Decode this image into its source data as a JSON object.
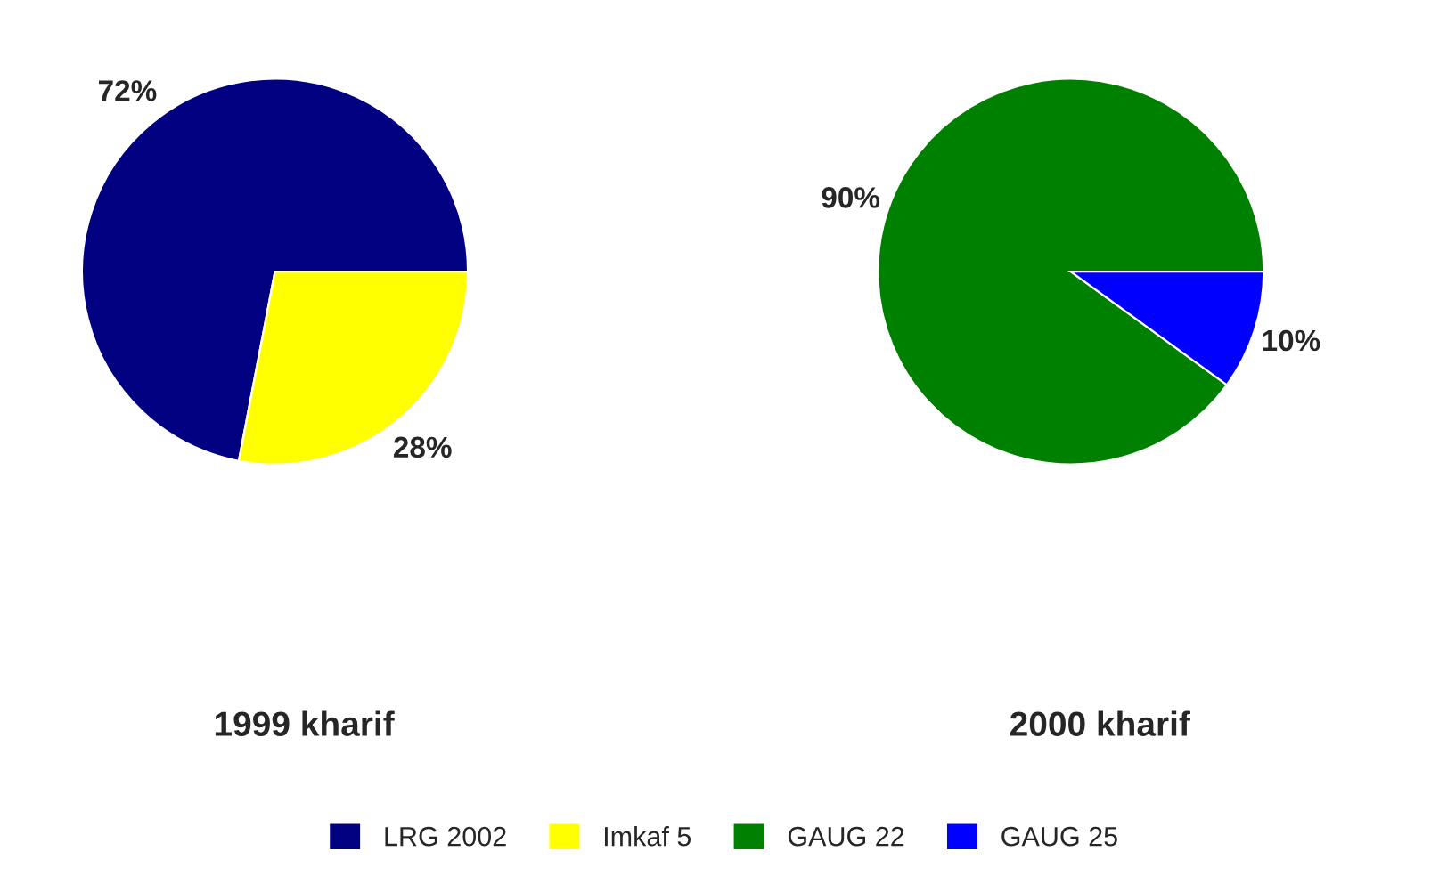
{
  "chart_data": [
    {
      "type": "pie",
      "title": "1999 kharif",
      "categories": [
        "LRG 2002",
        "Imkaf 5"
      ],
      "values": [
        72,
        28
      ],
      "colors": [
        "#000080",
        "#ffff00"
      ],
      "value_labels": [
        "72%",
        "28%"
      ],
      "legend": "bottom"
    },
    {
      "type": "pie",
      "title": "2000 kharif",
      "categories": [
        "GAUG 22",
        "GAUG 25"
      ],
      "values": [
        90,
        10
      ],
      "colors": [
        "#008000",
        "#0000ff"
      ],
      "value_labels": [
        "90%",
        "10%"
      ],
      "legend": "bottom"
    }
  ]
}
